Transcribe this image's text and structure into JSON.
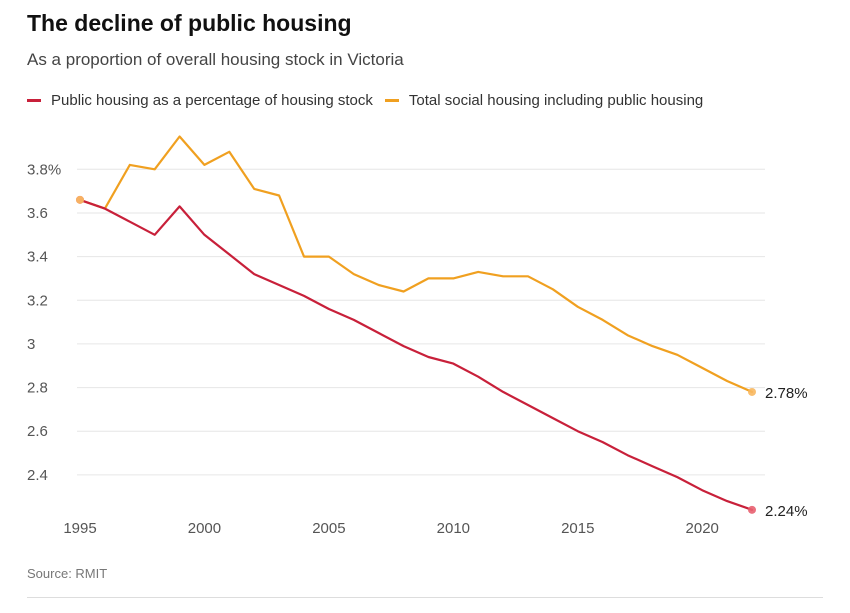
{
  "title": "The decline of public housing",
  "subtitle": "As a proportion of overall housing stock in Victoria",
  "source": "Source: RMIT",
  "colors": {
    "public": "#c8203a",
    "social": "#f0a020",
    "grid": "#e6e6e6",
    "marker_public": "#e86070",
    "marker_social": "#f8b860"
  },
  "chart_data": {
    "type": "line",
    "title": "The decline of public housing",
    "subtitle": "As a proportion of overall housing stock in Victoria",
    "xlabel": "",
    "ylabel": "",
    "xlim": [
      1995,
      2022
    ],
    "ylim": [
      2.23,
      3.98
    ],
    "x_ticks": [
      1995,
      2000,
      2005,
      2010,
      2015,
      2020
    ],
    "y_ticks": [
      2.4,
      2.6,
      2.8,
      3,
      3.2,
      3.4,
      3.6,
      3.8
    ],
    "y_tick_labels": [
      "2.4",
      "2.6",
      "2.8",
      "3",
      "3.2",
      "3.4",
      "3.6",
      "3.8%"
    ],
    "grid": "horizontal",
    "legend": "top",
    "x": [
      1995,
      1996,
      1997,
      1998,
      1999,
      2000,
      2001,
      2002,
      2003,
      2004,
      2005,
      2006,
      2007,
      2008,
      2009,
      2010,
      2011,
      2012,
      2013,
      2014,
      2015,
      2016,
      2017,
      2018,
      2019,
      2020,
      2021,
      2022
    ],
    "series": [
      {
        "name": "Public housing as a percentage of housing stock",
        "values": [
          3.66,
          3.62,
          3.56,
          3.5,
          3.63,
          3.5,
          3.41,
          3.32,
          3.27,
          3.22,
          3.16,
          3.11,
          3.05,
          2.99,
          2.94,
          2.91,
          2.85,
          2.78,
          2.72,
          2.66,
          2.6,
          2.55,
          2.49,
          2.44,
          2.39,
          2.33,
          2.28,
          2.24
        ],
        "end_label": "2.24%"
      },
      {
        "name": "Total social housing including public housing",
        "values": [
          3.66,
          3.62,
          3.82,
          3.8,
          3.95,
          3.82,
          3.88,
          3.71,
          3.68,
          3.4,
          3.4,
          3.32,
          3.27,
          3.24,
          3.3,
          3.3,
          3.33,
          3.31,
          3.31,
          3.25,
          3.17,
          3.11,
          3.04,
          2.99,
          2.95,
          2.89,
          2.83,
          2.78
        ],
        "end_label": "2.78%"
      }
    ]
  }
}
